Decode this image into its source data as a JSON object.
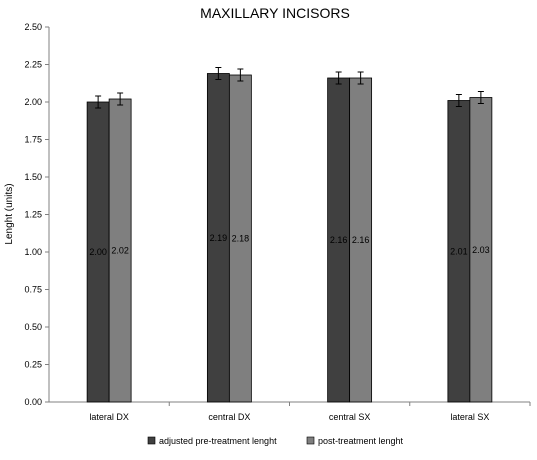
{
  "chart_data": {
    "type": "bar",
    "title": "MAXILLARY INCISORS",
    "xlabel": "",
    "ylabel": "Lenght (units)",
    "ylim": [
      0,
      2.5
    ],
    "yticks": [
      "0.00",
      "0.25",
      "0.50",
      "0.75",
      "1.00",
      "1.25",
      "1.50",
      "1.75",
      "2.00",
      "2.25",
      "2.50"
    ],
    "categories": [
      "lateral DX",
      "central DX",
      "central SX",
      "lateral SX"
    ],
    "series": [
      {
        "name": "adjusted pre-treatment lenght",
        "color": "#404040",
        "values": [
          2.0,
          2.19,
          2.16,
          2.01
        ],
        "labels": [
          "2.00",
          "2.19",
          "2.16",
          "2.01"
        ],
        "error": [
          0.04,
          0.04,
          0.04,
          0.04
        ]
      },
      {
        "name": "post-treatment lenght",
        "color": "#7f7f7f",
        "values": [
          2.02,
          2.18,
          2.16,
          2.03
        ],
        "labels": [
          "2.02",
          "2.18",
          "2.16",
          "2.03"
        ],
        "error": [
          0.04,
          0.04,
          0.04,
          0.04
        ]
      }
    ],
    "grid": false,
    "legend": "bottom"
  }
}
